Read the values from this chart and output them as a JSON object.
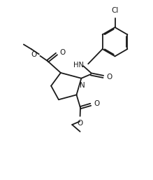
{
  "bg_color": "#ffffff",
  "line_color": "#1a1a1a",
  "line_width": 1.3,
  "figsize": [
    2.19,
    2.57
  ],
  "dpi": 100,
  "xlim": [
    -1,
    10
  ],
  "ylim": [
    -1,
    11
  ]
}
